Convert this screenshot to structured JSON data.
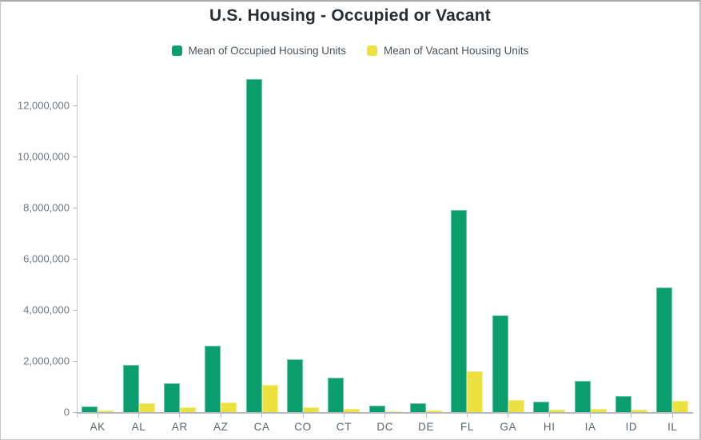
{
  "title": "U.S. Housing - Occupied or Vacant",
  "colors": {
    "occupied": "#0a9e6e",
    "vacant": "#ece13e",
    "axis": "#b4b8bb",
    "y_tick_label": "#6e767c",
    "x_tick_label": "#58646e",
    "title_text": "#272d31",
    "legend_text": "#4b545b",
    "background": "#ffffff",
    "frame_border": "#c6c6c6"
  },
  "legend": {
    "items": [
      {
        "label": "Mean of Occupied Housing Units",
        "color": "#0a9e6e"
      },
      {
        "label": "Mean of Vacant Housing Units",
        "color": "#ece13e"
      }
    ]
  },
  "chart_data": {
    "type": "bar",
    "title": "U.S. Housing - Occupied or Vacant",
    "xlabel": "",
    "ylabel": "",
    "categories": [
      "AK",
      "AL",
      "AR",
      "AZ",
      "CA",
      "CO",
      "CT",
      "DC",
      "DE",
      "FL",
      "GA",
      "HI",
      "IA",
      "ID",
      "IL"
    ],
    "series": [
      {
        "name": "Mean of Occupied Housing Units",
        "color": "#0a9e6e",
        "values": [
          230000,
          1840000,
          1130000,
          2600000,
          13050000,
          2080000,
          1360000,
          260000,
          340000,
          7900000,
          3780000,
          420000,
          1220000,
          610000,
          4870000
        ]
      },
      {
        "name": "Mean of Vacant Housing Units",
        "color": "#ece13e",
        "values": [
          60000,
          340000,
          180000,
          360000,
          1060000,
          200000,
          130000,
          30000,
          60000,
          1590000,
          470000,
          80000,
          120000,
          80000,
          450000
        ]
      }
    ],
    "ylim": [
      0,
      13200000
    ],
    "yticks": [
      0,
      2000000,
      4000000,
      6000000,
      8000000,
      10000000,
      12000000
    ],
    "ytick_labels": [
      "0",
      "2,000,000",
      "4,000,000",
      "6,000,000",
      "8,000,000",
      "10,000,000",
      "12,000,000"
    ],
    "grid": false,
    "legend_position": "top"
  }
}
